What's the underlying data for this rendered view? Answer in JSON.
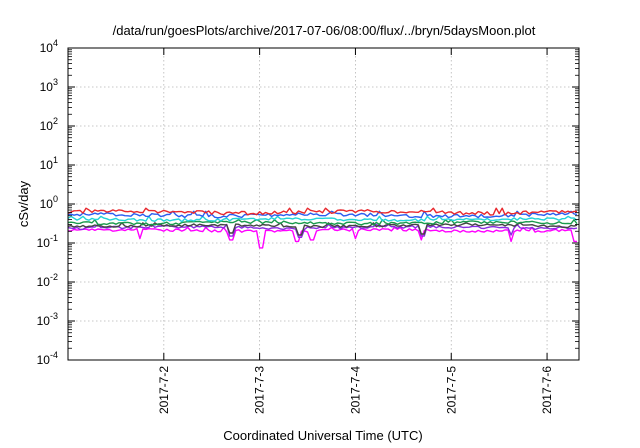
{
  "chart_data": {
    "type": "line",
    "title": "/data/run/goesPlots/archive/2017-07-06/08:00/flux/../bryn/5daysMoon.plot",
    "xlabel": "Coordinated Universal Time (UTC)",
    "ylabel": "cSv/day",
    "yscale": "log",
    "ylim": [
      0.0001,
      10000
    ],
    "xlim": [
      "2017-07-01T00:00",
      "2017-07-06T08:00"
    ],
    "grid": true,
    "legend": "none",
    "y_ticks": [
      {
        "value": 10000,
        "base": "10",
        "exp": "4"
      },
      {
        "value": 1000,
        "base": "10",
        "exp": "3"
      },
      {
        "value": 100,
        "base": "10",
        "exp": "2"
      },
      {
        "value": 10,
        "base": "10",
        "exp": "1"
      },
      {
        "value": 1,
        "base": "10",
        "exp": "0"
      },
      {
        "value": 0.1,
        "base": "10",
        "exp": "-1"
      },
      {
        "value": 0.01,
        "base": "10",
        "exp": "-2"
      },
      {
        "value": 0.001,
        "base": "10",
        "exp": "-3"
      },
      {
        "value": 0.0001,
        "base": "10",
        "exp": "-4"
      }
    ],
    "x_ticks": [
      {
        "value": "2017-07-02T00:00",
        "label": "2017-7-2"
      },
      {
        "value": "2017-07-03T00:00",
        "label": "2017-7-3"
      },
      {
        "value": "2017-07-04T00:00",
        "label": "2017-7-4"
      },
      {
        "value": "2017-07-05T00:00",
        "label": "2017-7-5"
      },
      {
        "value": "2017-07-06T00:00",
        "label": "2017-7-6"
      }
    ],
    "series": [
      {
        "color": "#e8282e",
        "base": 0.62,
        "amp": 0.1,
        "dips": []
      },
      {
        "color": "#2a5df0",
        "base": 0.52,
        "amp": 0.08,
        "dips": []
      },
      {
        "color": "#22d3d6",
        "base": 0.4,
        "amp": 0.05,
        "dips": []
      },
      {
        "color": "#1a9a4c",
        "base": 0.33,
        "amp": 0.04,
        "dips": []
      },
      {
        "color": "#444444",
        "base": 0.28,
        "amp": 0.03,
        "dips": [
          [
            "2017-07-02T17:00",
            0.18
          ],
          [
            "2017-07-03T10:00",
            0.16
          ],
          [
            "2017-07-04T17:00",
            0.17
          ]
        ]
      },
      {
        "color": "#8a2be2",
        "base": 0.25,
        "amp": 0.03,
        "dips": [
          [
            "2017-07-02T17:00",
            0.15
          ],
          [
            "2017-07-03T10:00",
            0.14
          ],
          [
            "2017-07-04T17:00",
            0.15
          ],
          [
            "2017-07-05T15:00",
            0.16
          ]
        ]
      },
      {
        "color": "#ff00ff",
        "base": 0.21,
        "amp": 0.025,
        "dips": [
          [
            "2017-07-01T18:00",
            0.13
          ],
          [
            "2017-07-02T17:00",
            0.12
          ],
          [
            "2017-07-03T00:30",
            0.075
          ],
          [
            "2017-07-03T09:30",
            0.11
          ],
          [
            "2017-07-03T13:00",
            0.12
          ],
          [
            "2017-07-04T00:00",
            0.13
          ],
          [
            "2017-07-04T16:30",
            0.12
          ],
          [
            "2017-07-05T15:00",
            0.11
          ],
          [
            "2017-07-06T07:00",
            0.11
          ]
        ]
      }
    ]
  }
}
